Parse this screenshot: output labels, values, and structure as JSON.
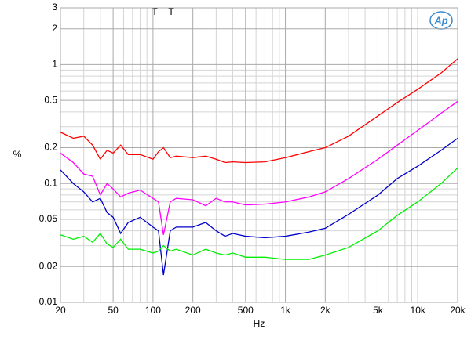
{
  "chart_data": {
    "type": "line",
    "x_label": "Hz",
    "y_label": "%",
    "annotations": [
      "T",
      "T"
    ],
    "logo": "Ap",
    "xlog": true,
    "ylog": true,
    "grid": true,
    "xlim": [
      20,
      20000
    ],
    "ylim": [
      0.01,
      3
    ],
    "xticks": [
      20,
      50,
      100,
      200,
      500,
      {
        "value": 1000,
        "label": "1k"
      },
      {
        "value": 2000,
        "label": "2k"
      },
      {
        "value": 5000,
        "label": "5k"
      },
      {
        "value": 10000,
        "label": "10k"
      },
      {
        "value": 20000,
        "label": "20k"
      }
    ],
    "yticks": [
      0.01,
      0.02,
      0.05,
      0.1,
      0.2,
      0.5,
      1,
      2,
      3
    ],
    "xminor": [
      30,
      40,
      60,
      70,
      80,
      90,
      300,
      400,
      600,
      700,
      800,
      900,
      3000,
      4000,
      6000,
      7000,
      8000,
      9000
    ],
    "yminor": [
      0.03,
      0.04,
      0.06,
      0.07,
      0.08,
      0.09,
      0.3,
      0.4,
      0.6,
      0.7,
      0.8,
      0.9
    ],
    "x": [
      20,
      25,
      30,
      35,
      40,
      45,
      50,
      57,
      65,
      80,
      100,
      110,
      120,
      135,
      150,
      200,
      250,
      300,
      350,
      400,
      500,
      700,
      1000,
      1500,
      2000,
      3000,
      5000,
      7000,
      10000,
      15000,
      20000
    ],
    "series": [
      {
        "color": "#ff0000",
        "values": [
          0.27,
          0.24,
          0.25,
          0.21,
          0.16,
          0.19,
          0.18,
          0.21,
          0.175,
          0.175,
          0.16,
          0.185,
          0.2,
          0.165,
          0.17,
          0.165,
          0.17,
          0.16,
          0.15,
          0.152,
          0.15,
          0.152,
          0.165,
          0.185,
          0.2,
          0.25,
          0.37,
          0.48,
          0.62,
          0.85,
          1.12
        ]
      },
      {
        "color": "#ff00ff",
        "values": [
          0.18,
          0.15,
          0.12,
          0.115,
          0.08,
          0.1,
          0.09,
          0.077,
          0.083,
          0.088,
          0.075,
          0.07,
          0.037,
          0.07,
          0.075,
          0.073,
          0.065,
          0.075,
          0.07,
          0.07,
          0.066,
          0.067,
          0.07,
          0.077,
          0.085,
          0.11,
          0.16,
          0.21,
          0.28,
          0.39,
          0.49
        ]
      },
      {
        "color": "#0000cc",
        "values": [
          0.13,
          0.1,
          0.085,
          0.07,
          0.075,
          0.057,
          0.052,
          0.038,
          0.047,
          0.052,
          0.043,
          0.04,
          0.017,
          0.04,
          0.043,
          0.043,
          0.047,
          0.04,
          0.036,
          0.038,
          0.036,
          0.035,
          0.036,
          0.039,
          0.042,
          0.055,
          0.08,
          0.11,
          0.14,
          0.19,
          0.24
        ]
      },
      {
        "color": "#00ee00",
        "values": [
          0.037,
          0.034,
          0.036,
          0.032,
          0.038,
          0.031,
          0.029,
          0.034,
          0.028,
          0.028,
          0.026,
          0.027,
          0.03,
          0.027,
          0.028,
          0.025,
          0.028,
          0.026,
          0.025,
          0.026,
          0.024,
          0.024,
          0.023,
          0.023,
          0.025,
          0.029,
          0.04,
          0.054,
          0.07,
          0.1,
          0.135
        ]
      }
    ]
  }
}
